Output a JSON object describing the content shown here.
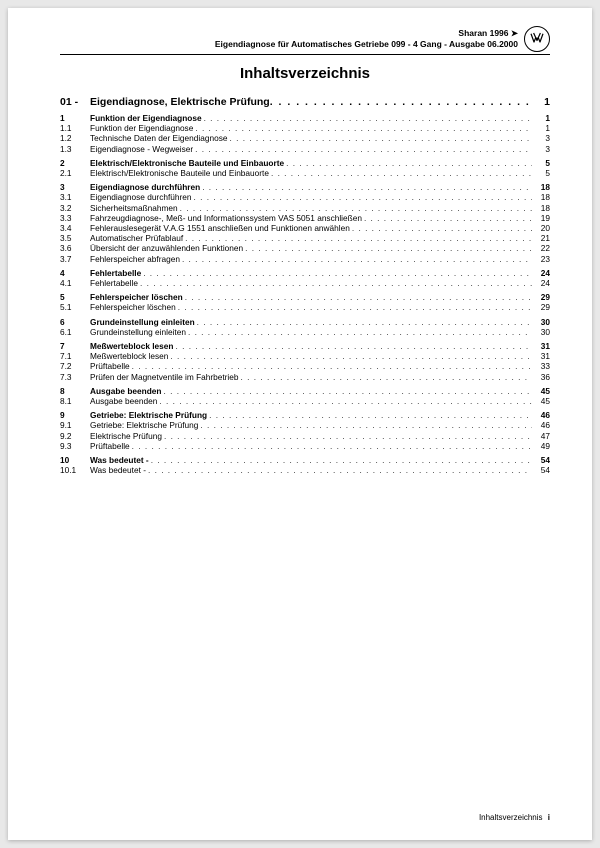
{
  "header": {
    "line1": "Sharan 1996 ➤",
    "line2": "Eigendiagnose für Automatisches Getriebe 099 - 4 Gang - Ausgabe 06.2000"
  },
  "title": "Inhaltsverzeichnis",
  "chapter": {
    "num": "01 -",
    "text": "Eigendiagnose, Elektrische Prüfung",
    "page": "1"
  },
  "toc": [
    {
      "type": "section",
      "num": "1",
      "text": "Funktion der Eigendiagnose",
      "page": "1"
    },
    {
      "type": "sub",
      "num": "1.1",
      "text": "Funktion der Eigendiagnose",
      "page": "1"
    },
    {
      "type": "sub",
      "num": "1.2",
      "text": "Technische Daten der Eigendiagnose",
      "page": "3"
    },
    {
      "type": "sub",
      "num": "1.3",
      "text": "Eigendiagnose - Wegweiser",
      "page": "3"
    },
    {
      "type": "gap"
    },
    {
      "type": "section",
      "num": "2",
      "text": "Elektrisch/Elektronische Bauteile und Einbauorte",
      "page": "5"
    },
    {
      "type": "sub",
      "num": "2.1",
      "text": "Elektrisch/Elektronische Bauteile und Einbauorte",
      "page": "5"
    },
    {
      "type": "gap"
    },
    {
      "type": "section",
      "num": "3",
      "text": "Eigendiagnose durchführen",
      "page": "18"
    },
    {
      "type": "sub",
      "num": "3.1",
      "text": "Eigendiagnose durchführen",
      "page": "18"
    },
    {
      "type": "sub",
      "num": "3.2",
      "text": "Sicherheitsmaßnahmen",
      "page": "18"
    },
    {
      "type": "sub",
      "num": "3.3",
      "text": "Fahrzeugdiagnose-, Meß- und Informationssystem VAS 5051 anschließen",
      "page": "19"
    },
    {
      "type": "sub",
      "num": "3.4",
      "text": "Fehlerauslesegerät V.A.G 1551 anschließen und Funktionen anwählen",
      "page": "20"
    },
    {
      "type": "sub",
      "num": "3.5",
      "text": "Automatischer Prüfablauf",
      "page": "21"
    },
    {
      "type": "sub",
      "num": "3.6",
      "text": "Übersicht der anzuwählenden Funktionen",
      "page": "22"
    },
    {
      "type": "sub",
      "num": "3.7",
      "text": "Fehlerspeicher abfragen",
      "page": "23"
    },
    {
      "type": "gap"
    },
    {
      "type": "section",
      "num": "4",
      "text": "Fehlertabelle",
      "page": "24"
    },
    {
      "type": "sub",
      "num": "4.1",
      "text": "Fehlertabelle",
      "page": "24"
    },
    {
      "type": "gap"
    },
    {
      "type": "section",
      "num": "5",
      "text": "Fehlerspeicher löschen",
      "page": "29"
    },
    {
      "type": "sub",
      "num": "5.1",
      "text": "Fehlerspeicher löschen",
      "page": "29"
    },
    {
      "type": "gap"
    },
    {
      "type": "section",
      "num": "6",
      "text": "Grundeinstellung einleiten",
      "page": "30"
    },
    {
      "type": "sub",
      "num": "6.1",
      "text": "Grundeinstellung einleiten",
      "page": "30"
    },
    {
      "type": "gap"
    },
    {
      "type": "section",
      "num": "7",
      "text": "Meßwerteblock lesen",
      "page": "31"
    },
    {
      "type": "sub",
      "num": "7.1",
      "text": "Meßwerteblock lesen",
      "page": "31"
    },
    {
      "type": "sub",
      "num": "7.2",
      "text": "Prüftabelle",
      "page": "33"
    },
    {
      "type": "sub",
      "num": "7.3",
      "text": "Prüfen der Magnetventile im Fahrbetrieb",
      "page": "36"
    },
    {
      "type": "gap"
    },
    {
      "type": "section",
      "num": "8",
      "text": "Ausgabe beenden",
      "page": "45"
    },
    {
      "type": "sub",
      "num": "8.1",
      "text": "Ausgabe beenden",
      "page": "45"
    },
    {
      "type": "gap"
    },
    {
      "type": "section",
      "num": "9",
      "text": "Getriebe: Elektrische Prüfung",
      "page": "46"
    },
    {
      "type": "sub",
      "num": "9.1",
      "text": "Getriebe: Elektrische Prüfung",
      "page": "46"
    },
    {
      "type": "sub",
      "num": "9.2",
      "text": "Elektrische Prüfung",
      "page": "47"
    },
    {
      "type": "sub",
      "num": "9.3",
      "text": "Prüftabelle",
      "page": "49"
    },
    {
      "type": "gap"
    },
    {
      "type": "section",
      "num": "10",
      "text": "Was bedeutet -",
      "page": "54"
    },
    {
      "type": "sub",
      "num": "10.1",
      "text": "Was bedeutet -",
      "page": "54"
    }
  ],
  "footer": {
    "label": "Inhaltsverzeichnis",
    "page": "i"
  },
  "leader": ". . . . . . . . . . . . . . . . . . . . . . . . . . . . . . . . . . . . . . . . . . . . . . . . . . . . . . . . . . . . . . . . . . . . . . . . . . . . . . . . . . . . . . . . . . . . . . . . . . . . . . . . . . . . . . . . . . . . . . . . . . . . . . . . . . . . . . . . . . . . . . ."
}
